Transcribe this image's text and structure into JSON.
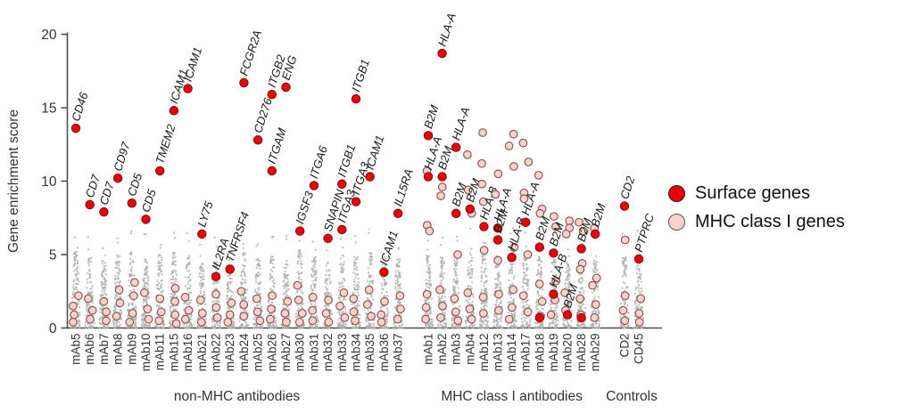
{
  "figure": {
    "ylabel": "Gene enrichment score",
    "legend": [
      {
        "label": "Surface genes",
        "type": "surface"
      },
      {
        "label": "MHC class I genes",
        "type": "mhc"
      }
    ],
    "colors": {
      "surface_red": "#e8000b",
      "surface_red_stroke": "#7a0d0d",
      "mhc_pink_fill": "#f6d2cd",
      "mhc_pink_stroke": "#8a5252",
      "background_gray": "#b0b0b0",
      "axis": "#4d4d4d",
      "label_text": "#1a1a1a"
    }
  },
  "chart_data": {
    "type": "scatter",
    "title": "",
    "xlabel": "",
    "ylabel": "Gene enrichment score",
    "ylim": [
      0,
      20
    ],
    "yticks": [
      0,
      5,
      10,
      15,
      20
    ],
    "legend": [
      "Surface genes",
      "MHC class I genes"
    ],
    "groups": [
      {
        "label": "non-MHC antibodies",
        "columns": [
          {
            "antibody": "mAb5",
            "surface_genes": [
              {
                "gene": "CD46",
                "score": 13.6
              }
            ],
            "mhc_circles": [
              2.2,
              1.5,
              0.9,
              0.4
            ],
            "background_max": 5.2
          },
          {
            "antibody": "mAb6",
            "surface_genes": [
              {
                "gene": "CD7",
                "score": 8.4
              }
            ],
            "mhc_circles": [
              2.0,
              1.2,
              0.6
            ],
            "background_max": 4.8
          },
          {
            "antibody": "mAb7",
            "surface_genes": [
              {
                "gene": "CD7",
                "score": 7.9
              }
            ],
            "mhc_circles": [
              1.8,
              1.1,
              0.5
            ],
            "background_max": 4.6
          },
          {
            "antibody": "mAb8",
            "surface_genes": [
              {
                "gene": "CD97",
                "score": 10.2
              }
            ],
            "mhc_circles": [
              2.6,
              1.7,
              0.8
            ],
            "background_max": 5.0
          },
          {
            "antibody": "mAb9",
            "surface_genes": [
              {
                "gene": "CD5",
                "score": 8.5
              }
            ],
            "mhc_circles": [
              3.1,
              2.2,
              1.0,
              0.4
            ],
            "background_max": 5.2
          },
          {
            "antibody": "mAb10",
            "surface_genes": [
              {
                "gene": "CD5",
                "score": 7.4
              }
            ],
            "mhc_circles": [
              2.4,
              1.3,
              0.6
            ],
            "background_max": 4.7
          },
          {
            "antibody": "mAb11",
            "surface_genes": [
              {
                "gene": "TMEM2",
                "score": 10.7
              }
            ],
            "mhc_circles": [
              2.0,
              1.1,
              0.5
            ],
            "background_max": 5.0
          },
          {
            "antibody": "mAb15",
            "surface_genes": [
              {
                "gene": "ICAM1",
                "score": 14.8
              }
            ],
            "mhc_circles": [
              2.7,
              1.8,
              0.9,
              0.3
            ],
            "background_max": 5.4
          },
          {
            "antibody": "mAb16",
            "surface_genes": [
              {
                "gene": "ICAM1",
                "score": 16.3
              }
            ],
            "mhc_circles": [
              2.1,
              1.2,
              0.6
            ],
            "background_max": 4.9
          },
          {
            "antibody": "mAb21",
            "surface_genes": [
              {
                "gene": "LY75",
                "score": 6.4
              }
            ],
            "mhc_circles": [
              1.9,
              1.0,
              0.4
            ],
            "background_max": 4.4
          },
          {
            "antibody": "mAb22",
            "surface_genes": [
              {
                "gene": "IL2RA",
                "score": 3.5
              }
            ],
            "mhc_circles": [
              2.3,
              1.4,
              0.7
            ],
            "background_max": 4.6
          },
          {
            "antibody": "mAb23",
            "surface_genes": [
              {
                "gene": "TNFRSF4",
                "score": 4.0
              }
            ],
            "mhc_circles": [
              1.7,
              0.9,
              0.4
            ],
            "background_max": 4.3
          },
          {
            "antibody": "mAb24",
            "surface_genes": [
              {
                "gene": "FCGR2A",
                "score": 16.7
              }
            ],
            "mhc_circles": [
              2.5,
              1.6,
              0.8
            ],
            "background_max": 5.1
          },
          {
            "antibody": "mAb25",
            "surface_genes": [
              {
                "gene": "CD276",
                "score": 12.8
              }
            ],
            "mhc_circles": [
              2.0,
              1.1,
              0.5
            ],
            "background_max": 4.8
          },
          {
            "antibody": "mAb26",
            "surface_genes": [
              {
                "gene": "ITGB2",
                "score": 15.9
              },
              {
                "gene": "ITGAM",
                "score": 10.7
              }
            ],
            "mhc_circles": [
              2.2,
              1.3,
              0.6
            ],
            "background_max": 5.0
          },
          {
            "antibody": "mAb27",
            "surface_genes": [
              {
                "gene": "ENG",
                "score": 16.4
              }
            ],
            "mhc_circles": [
              1.8,
              1.0,
              0.4
            ],
            "background_max": 4.6
          },
          {
            "antibody": "mAb30",
            "surface_genes": [
              {
                "gene": "IGSF3",
                "score": 6.6
              }
            ],
            "mhc_circles": [
              2.9,
              1.9,
              1.0,
              0.4
            ],
            "background_max": 5.3
          },
          {
            "antibody": "mAb31",
            "surface_genes": [
              {
                "gene": "ITGA6",
                "score": 9.7
              }
            ],
            "mhc_circles": [
              2.1,
              1.2,
              0.5
            ],
            "background_max": 4.8
          },
          {
            "antibody": "mAb32",
            "surface_genes": [
              {
                "gene": "SNAPIN",
                "score": 6.1
              }
            ],
            "mhc_circles": [
              1.9,
              1.0,
              0.4
            ],
            "background_max": 4.5
          },
          {
            "antibody": "mAb33",
            "surface_genes": [
              {
                "gene": "ITGB1",
                "score": 9.8
              },
              {
                "gene": "ITGA3",
                "score": 6.7
              }
            ],
            "mhc_circles": [
              2.4,
              1.5,
              0.7
            ],
            "background_max": 5.0
          },
          {
            "antibody": "mAb34",
            "surface_genes": [
              {
                "gene": "ITGB1",
                "score": 15.6
              },
              {
                "gene": "ITGA3",
                "score": 8.6
              }
            ],
            "mhc_circles": [
              2.0,
              1.1,
              0.5
            ],
            "background_max": 4.9
          },
          {
            "antibody": "mAb35",
            "surface_genes": [
              {
                "gene": "ICAM1",
                "score": 10.3
              }
            ],
            "mhc_circles": [
              2.6,
              1.6,
              0.8
            ],
            "background_max": 5.1
          },
          {
            "antibody": "mAb36",
            "surface_genes": [
              {
                "gene": "ICAM1",
                "score": 3.8
              }
            ],
            "mhc_circles": [
              1.8,
              0.9,
              0.4
            ],
            "background_max": 4.4
          },
          {
            "antibody": "mAb37",
            "surface_genes": [
              {
                "gene": "IL15RA",
                "score": 7.8
              }
            ],
            "mhc_circles": [
              2.2,
              1.3,
              0.6
            ],
            "background_max": 4.7
          }
        ]
      },
      {
        "label": "MHC class I antibodies",
        "columns": [
          {
            "antibody": "mAb1",
            "surface_genes": [
              {
                "gene": "B2M",
                "score": 13.1
              },
              {
                "gene": "HLA-A",
                "score": 10.3
              }
            ],
            "mhc_circles": [
              10.7,
              7.0,
              6.6,
              2.3,
              1.4,
              0.6
            ],
            "background_max": 5.0
          },
          {
            "antibody": "mAb2",
            "surface_genes": [
              {
                "gene": "HLA-A",
                "score": 18.7
              },
              {
                "gene": "B2M",
                "score": 10.3
              }
            ],
            "mhc_circles": [
              9.6,
              9.0,
              2.6,
              1.5,
              0.7
            ],
            "background_max": 4.9
          },
          {
            "antibody": "mAb3",
            "surface_genes": [
              {
                "gene": "HLA-A",
                "score": 12.3
              },
              {
                "gene": "B2M",
                "score": 7.8
              }
            ],
            "mhc_circles": [
              5.0,
              2.0,
              1.1,
              0.5
            ],
            "background_max": 4.7
          },
          {
            "antibody": "mAb4",
            "surface_genes": [
              {
                "gene": "B2M",
                "score": 8.1
              }
            ],
            "mhc_circles": [
              11.8,
              9.4,
              7.8,
              2.4,
              1.3,
              0.6
            ],
            "background_max": 5.1
          },
          {
            "antibody": "mAb12",
            "surface_genes": [
              {
                "gene": "HLA-B",
                "score": 6.9
              }
            ],
            "mhc_circles": [
              13.3,
              11.2,
              9.8,
              8.6,
              5.3,
              2.1,
              1.0
            ],
            "background_max": 5.2
          },
          {
            "antibody": "mAb13",
            "surface_genes": [
              {
                "gene": "HLA-A",
                "score": 6.8
              },
              {
                "gene": "B2M",
                "score": 6.0
              }
            ],
            "mhc_circles": [
              10.5,
              9.1,
              4.6,
              2.3,
              1.2
            ],
            "background_max": 5.0
          },
          {
            "antibody": "mAb14",
            "surface_genes": [
              {
                "gene": "HLA-B",
                "score": 4.8
              }
            ],
            "mhc_circles": [
              13.2,
              12.4,
              11.0,
              5.5,
              2.6,
              1.4,
              0.6
            ],
            "background_max": 5.3
          },
          {
            "antibody": "mAb17",
            "surface_genes": [
              {
                "gene": "HLA-A",
                "score": 7.2
              }
            ],
            "mhc_circles": [
              12.6,
              11.3,
              9.2,
              8.8,
              5.0,
              2.2,
              1.1
            ],
            "background_max": 5.1
          },
          {
            "antibody": "mAb18",
            "surface_genes": [
              {
                "gene": "B2M",
                "score": 5.5
              },
              {
                "gene": "",
                "score": 0.7
              }
            ],
            "mhc_circles": [
              10.4,
              8.1,
              7.8,
              3.0,
              1.8,
              0.8
            ],
            "background_max": 4.9
          },
          {
            "antibody": "mAb19",
            "surface_genes": [
              {
                "gene": "B2M",
                "score": 5.1
              },
              {
                "gene": "HLA-B",
                "score": 2.3
              }
            ],
            "mhc_circles": [
              7.6,
              6.9,
              3.2,
              1.9,
              0.9
            ],
            "background_max": 4.8
          },
          {
            "antibody": "mAb20",
            "surface_genes": [
              {
                "gene": "B2M",
                "score": 0.9
              }
            ],
            "mhc_circles": [
              7.3,
              6.8,
              6.4,
              2.4,
              1.2
            ],
            "background_max": 4.6
          },
          {
            "antibody": "mAb28",
            "surface_genes": [
              {
                "gene": "B2M",
                "score": 5.4
              },
              {
                "gene": "",
                "score": 0.7
              }
            ],
            "mhc_circles": [
              7.2,
              6.6,
              4.4,
              4.0,
              2.0,
              0.9
            ],
            "background_max": 4.7
          },
          {
            "antibody": "mAb29",
            "surface_genes": [
              {
                "gene": "B2M",
                "score": 6.4
              }
            ],
            "mhc_circles": [
              6.8,
              3.4,
              2.9,
              1.6,
              0.7
            ],
            "background_max": 4.9
          }
        ]
      },
      {
        "label": "Controls",
        "columns": [
          {
            "antibody": "CD2",
            "surface_genes": [
              {
                "gene": "CD2",
                "score": 8.3
              }
            ],
            "mhc_circles": [
              6.0,
              2.2,
              1.2,
              0.5
            ],
            "background_max": 4.8
          },
          {
            "antibody": "CD45",
            "surface_genes": [
              {
                "gene": "PTPRC",
                "score": 4.7
              }
            ],
            "mhc_circles": [
              2.0,
              1.0,
              0.4
            ],
            "background_max": 5.0
          }
        ]
      }
    ]
  }
}
